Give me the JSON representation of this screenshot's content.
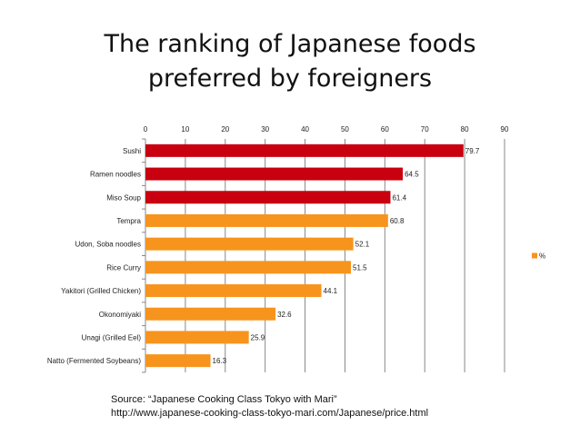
{
  "title": "The ranking of Japanese foods\npreferred by foreigners",
  "source": {
    "line1": "Source: “Japanese Cooking Class Tokyo with Mari”",
    "line2": "http://www.japanese-cooking-class-tokyo-mari.com/Japanese/price.html"
  },
  "colors": {
    "red": "#c8000f",
    "orange": "#f7941d",
    "axis": "#888888",
    "grid": "#888888"
  },
  "chart_data": {
    "type": "bar",
    "orientation": "horizontal",
    "categories": [
      "Sushi",
      "Ramen noodles",
      "Miso Soup",
      "Tempra",
      "Udon, Soba noodles",
      "Rice Curry",
      "Yakitori (Grilled Chicken)",
      "Okonomiyaki",
      "Unagi (Grilled Eel)",
      "Natto (Fermented Soybeans)"
    ],
    "series": [
      {
        "name": "%",
        "values": [
          79.7,
          64.5,
          61.4,
          60.8,
          52.1,
          51.5,
          44.1,
          32.6,
          25.9,
          16.3
        ]
      }
    ],
    "bar_colors": [
      "red",
      "red",
      "red",
      "orange",
      "orange",
      "orange",
      "orange",
      "orange",
      "orange",
      "orange"
    ],
    "xlim": [
      0,
      90
    ],
    "xticks": [
      0,
      10,
      20,
      30,
      40,
      50,
      60,
      70,
      80,
      90
    ],
    "grid": true,
    "legend_position": "right"
  }
}
